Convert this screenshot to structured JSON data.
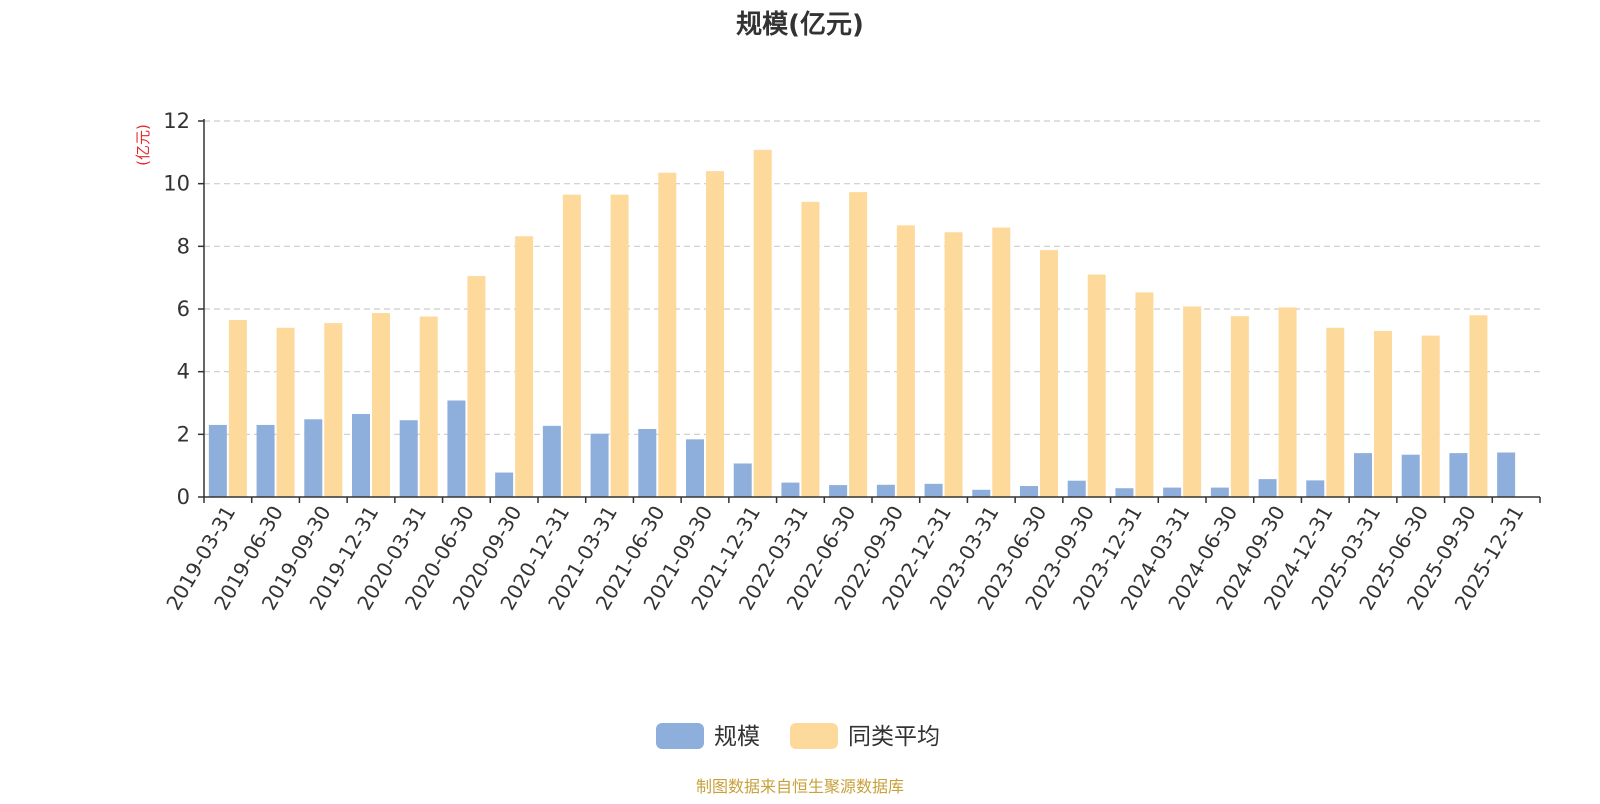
{
  "chart_data": {
    "type": "bar",
    "title": "规模(亿元)",
    "ylabel": "(亿元)",
    "xlabel": "",
    "ylim": [
      0,
      12
    ],
    "yticks": [
      0,
      2,
      4,
      6,
      8,
      10,
      12
    ],
    "grid": true,
    "legend_position": "bottom",
    "categories": [
      "2019-03-31",
      "2019-06-30",
      "2019-09-30",
      "2019-12-31",
      "2020-03-31",
      "2020-06-30",
      "2020-09-30",
      "2020-12-31",
      "2021-03-31",
      "2021-06-30",
      "2021-09-30",
      "2021-12-31",
      "2022-03-31",
      "2022-06-30",
      "2022-09-30",
      "2022-12-31",
      "2023-03-31",
      "2023-06-30",
      "2023-09-30",
      "2023-12-31",
      "2024-03-31",
      "2024-06-30",
      "2024-09-30",
      "2024-12-31",
      "2025-03-31",
      "2025-06-30",
      "2025-09-30",
      "2025-12-31"
    ],
    "series": [
      {
        "name": "规模",
        "color": "#8eaedb",
        "values": [
          2.3,
          2.3,
          2.48,
          2.65,
          2.45,
          3.08,
          0.78,
          2.27,
          2.02,
          2.17,
          1.84,
          1.07,
          0.46,
          0.38,
          0.39,
          0.42,
          0.23,
          0.35,
          0.52,
          0.28,
          0.3,
          0.3,
          0.57,
          0.53,
          1.4,
          1.35,
          1.4,
          1.42
        ]
      },
      {
        "name": "同类平均",
        "color": "#fdd99c",
        "values": [
          5.65,
          5.4,
          5.55,
          5.87,
          5.76,
          7.05,
          8.32,
          9.65,
          9.65,
          10.35,
          10.4,
          11.08,
          9.42,
          9.73,
          8.67,
          8.45,
          8.6,
          7.88,
          7.1,
          6.53,
          6.08,
          5.77,
          6.05,
          5.4,
          5.3,
          5.15,
          5.8,
          null
        ]
      }
    ],
    "source_note": "制图数据来自恒生聚源数据库",
    "source_color": "#c8a13a",
    "ylabel_color": "#e52a2a"
  }
}
